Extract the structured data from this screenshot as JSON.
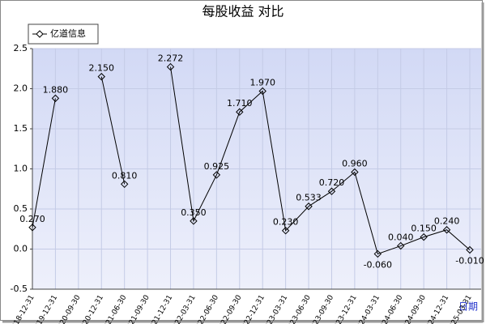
{
  "chart_data": {
    "type": "line",
    "title": "每股收益  对比",
    "x_label": "日期",
    "categories": [
      "2018-12-31",
      "2019-12-31",
      "2020-09-30",
      "2020-12-31",
      "2021-06-30",
      "2021-09-30",
      "2021-12-31",
      "2022-03-31",
      "2022-06-30",
      "2022-09-30",
      "2022-12-31",
      "2023-03-31",
      "2023-06-30",
      "2023-09-30",
      "2023-12-31",
      "2024-03-31",
      "2024-06-30",
      "2024-09-30",
      "2024-12-31",
      "2025-03-31"
    ],
    "series": [
      {
        "name": "亿道信息",
        "color": "#000000",
        "values": [
          0.27,
          1.88,
          null,
          2.15,
          0.81,
          null,
          2.272,
          0.35,
          0.925,
          1.71,
          1.97,
          0.23,
          0.533,
          0.72,
          0.96,
          -0.06,
          0.04,
          0.15,
          0.24,
          -0.01
        ],
        "value_labels": [
          "0.270",
          "1.880",
          null,
          "2.150",
          "0.810",
          null,
          "2.272",
          "0.350",
          "0.925",
          "1.710",
          "1.970",
          "0.230",
          "0.533",
          "0.720",
          "0.960",
          "-0.060",
          "0.040",
          "0.150",
          "0.240",
          "-0.010"
        ]
      }
    ],
    "ylim": [
      -0.5,
      2.5
    ],
    "yticks": [
      -0.5,
      {
        "value": 0,
        "label": "0.0"
      },
      0.5,
      {
        "value": 1,
        "label": "1.0"
      },
      1.5,
      {
        "value": 2,
        "label": "2.0"
      },
      2.5
    ],
    "grid": true
  }
}
